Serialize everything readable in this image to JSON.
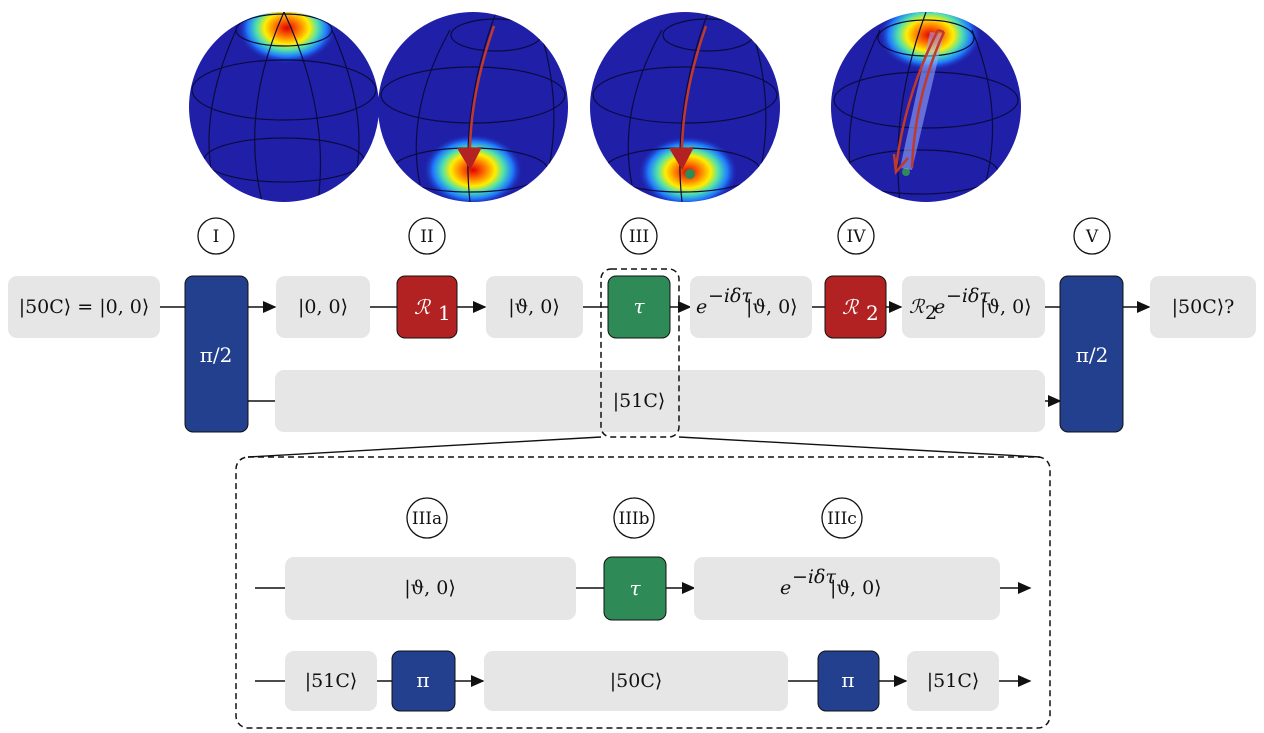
{
  "colors": {
    "state_box": "#e6e6e6",
    "pi_pulse": "#23408e",
    "rotation": "#b22222",
    "free_evolution": "#2e8b57",
    "sphere_base": "#1f1fa8",
    "trajectory": "#c0392b"
  },
  "stages": {
    "I": "I",
    "II": "II",
    "III": "III",
    "IV": "IV",
    "V": "V",
    "IIIa": "IIIa",
    "IIIb": "IIIb",
    "IIIc": "IIIc"
  },
  "gates": {
    "half_pi": "π/2",
    "r1_main": "ℛ",
    "r1_sub": "1",
    "r2_main": "ℛ",
    "r2_sub": "2",
    "tau": "τ",
    "pi": "π"
  },
  "states": {
    "initial": "|50C⟩ = |0, 0⟩",
    "ground": "|0, 0⟩",
    "coherent": "|ϑ, 0⟩",
    "phase_pre": "e",
    "phase_exp": "−iδτ",
    "phase_post": "|ϑ, 0⟩",
    "r2_pre": "ℛ",
    "r2_sub": "2",
    "r2_e": "e",
    "r2_exp": "−iδτ",
    "r2_post": "|ϑ, 0⟩",
    "final": "|50C⟩?",
    "lower_level": "|51C⟩",
    "inset_coherent": "|ϑ, 0⟩",
    "inset_phase_pre": "e",
    "inset_phase_exp": "−iδτ",
    "inset_phase_post": "|ϑ, 0⟩",
    "inset_51c_left": "|51C⟩",
    "inset_50c": "|50C⟩",
    "inset_51c_right": "|51C⟩"
  }
}
